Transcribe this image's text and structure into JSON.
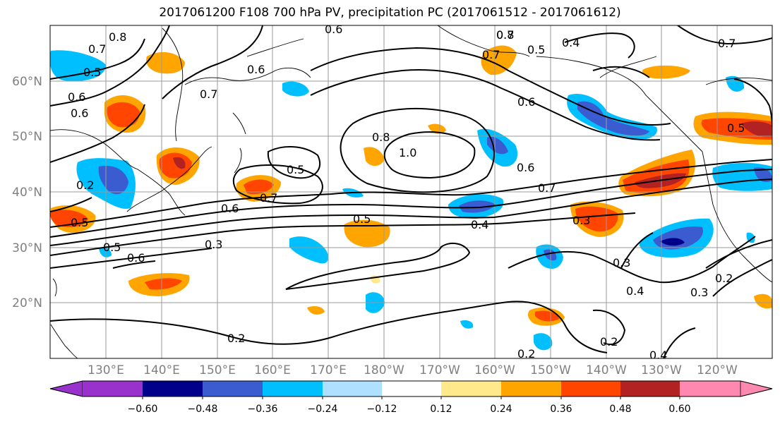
{
  "title": "2017061200 F108 700 hPa PV, precipitation PC (2017061512 - 2017061612)",
  "lat_labels": [
    "60°N",
    "50°N",
    "40°N",
    "30°N",
    "20°N"
  ],
  "lon_labels": [
    "130°E",
    "140°E",
    "150°E",
    "160°E",
    "170°E",
    "180°W",
    "170°W",
    "160°W",
    "150°W",
    "140°W",
    "130°W",
    "120°W"
  ],
  "colorbar": {
    "ticks": [
      "−0.60",
      "−0.48",
      "−0.36",
      "−0.24",
      "−0.12",
      "0.12",
      "0.24",
      "0.36",
      "0.48",
      "0.60"
    ],
    "colors": [
      "#9932cc",
      "#00008b",
      "#3a5cd0",
      "#00bfff",
      "#b0e0ff",
      "#ffffff",
      "#ffe98a",
      "#ffa500",
      "#ff4500",
      "#b22222",
      "#ff88b0"
    ]
  },
  "contour_labels": [
    "0.8",
    "0.7",
    "0.6",
    "0.5",
    "0.6",
    "0.7",
    "0.6",
    "0.6",
    "0.7",
    "0.7",
    "0.8",
    "0.5",
    "0.4",
    "0.7",
    "0.6",
    "0.8",
    "1.0",
    "0.5",
    "0.6",
    "0.7",
    "0.5",
    "0.4",
    "0.6",
    "0.3",
    "0.7",
    "0.5",
    "0.3",
    "0.5",
    "0.6",
    "0.3",
    "0.4",
    "0.3",
    "0.2",
    "0.2",
    "0.2",
    "0.2",
    "0.2",
    "0.4",
    "0.5"
  ]
}
